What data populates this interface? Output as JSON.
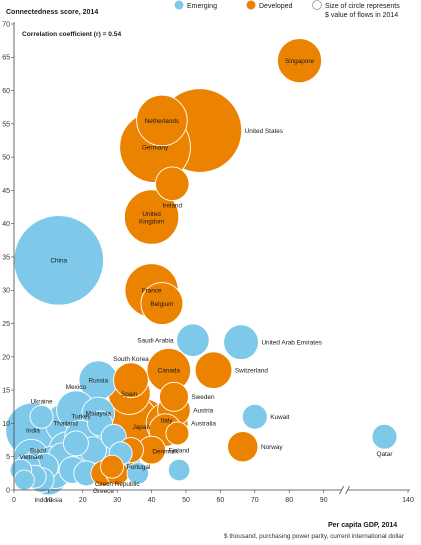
{
  "chart_data": {
    "type": "scatter",
    "ylabel": "Connectedness score, 2014",
    "xlabel": "Per capita GDP, 2014",
    "xlabel_sub": "$ thousand, purchasing power parity, current international dollar",
    "annotation": "Correlation coefficient (r) = 0.54",
    "legend": {
      "items": [
        {
          "name": "Emerging",
          "color": "#7ec8ea"
        },
        {
          "name": "Developed",
          "color": "#ec8300"
        }
      ],
      "size_note_line1": "Size of circle represents",
      "size_note_line2": "$ value of flows in 2014"
    },
    "xlim": [
      0,
      140
    ],
    "ylim": [
      0,
      70
    ],
    "x_ticks": [
      "0",
      "10",
      "20",
      "30",
      "40",
      "50",
      "60",
      "70",
      "80",
      "90",
      "140"
    ],
    "y_ticks": [
      "0",
      "5",
      "10",
      "15",
      "20",
      "25",
      "30",
      "35",
      "40",
      "45",
      "50",
      "55",
      "60",
      "65",
      "70"
    ],
    "axis_break_between": [
      90,
      140
    ],
    "grid": false,
    "legend_placement": "top",
    "colors": {
      "emerging": "#7ec8ea",
      "developed": "#ec8300"
    },
    "labeled_points": [
      {
        "name": "Singapore",
        "group": "developed",
        "x": 83,
        "y": 64.5,
        "size": 0.62
      },
      {
        "name": "United States",
        "group": "developed",
        "x": 54,
        "y": 54,
        "size": 2.6
      },
      {
        "name": "Netherlands",
        "group": "developed",
        "x": 43,
        "y": 55.5,
        "size": 0.85
      },
      {
        "name": "Germany",
        "group": "developed",
        "x": 41,
        "y": 51.5,
        "size": 1.8
      },
      {
        "name": "Ireland",
        "group": "developed",
        "x": 46,
        "y": 46,
        "size": 0.32
      },
      {
        "name": "United Kingdom",
        "group": "developed",
        "x": 40,
        "y": 41,
        "size": 1.0
      },
      {
        "name": "China",
        "group": "emerging",
        "x": 13,
        "y": 34.5,
        "size": 3.0
      },
      {
        "name": "France",
        "group": "developed",
        "x": 40,
        "y": 30,
        "size": 0.95
      },
      {
        "name": "Belgium",
        "group": "developed",
        "x": 43,
        "y": 28,
        "size": 0.55
      },
      {
        "name": "Saudi Arabia",
        "group": "emerging",
        "x": 52,
        "y": 22.5,
        "size": 0.3
      },
      {
        "name": "United Arab Emirates",
        "group": "emerging",
        "x": 66,
        "y": 22.2,
        "size": 0.35
      },
      {
        "name": "Russia",
        "group": "emerging",
        "x": 24.5,
        "y": 16.5,
        "size": 0.45
      },
      {
        "name": "Canada",
        "group": "developed",
        "x": 45,
        "y": 18,
        "size": 0.6
      },
      {
        "name": "Switzerland",
        "group": "developed",
        "x": 58,
        "y": 18,
        "size": 0.4
      },
      {
        "name": "South Korea",
        "group": "developed",
        "x": 34,
        "y": 16.5,
        "size": 0.35
      },
      {
        "name": "Spain",
        "group": "developed",
        "x": 33.5,
        "y": 14.5,
        "size": 0.55
      },
      {
        "name": "Sweden",
        "group": "developed",
        "x": 46.5,
        "y": 14,
        "size": 0.22
      },
      {
        "name": "Austria",
        "group": "developed",
        "x": 46.5,
        "y": 12,
        "size": 0.3
      },
      {
        "name": "Mexico",
        "group": "emerging",
        "x": 18,
        "y": 12,
        "size": 0.45
      },
      {
        "name": "Malaysia",
        "group": "emerging",
        "x": 24.5,
        "y": 11.5,
        "size": 0.3
      },
      {
        "name": "Ukraine",
        "group": "emerging",
        "x": 8,
        "y": 11,
        "size": 0.12
      },
      {
        "name": "Thailand",
        "group": "emerging",
        "x": 15,
        "y": 10,
        "size": 0.5
      },
      {
        "name": "Italy",
        "group": "developed",
        "x": 35,
        "y": 10.5,
        "size": 0.7
      },
      {
        "name": "Japan",
        "group": "developed",
        "x": 37,
        "y": 9.5,
        "size": 1.1
      },
      {
        "name": "Australia",
        "group": "developed",
        "x": 44.5,
        "y": 10,
        "size": 0.55
      },
      {
        "name": "Kuwait",
        "group": "emerging",
        "x": 70,
        "y": 11,
        "size": 0.15
      },
      {
        "name": "India",
        "group": "emerging",
        "x": 5.5,
        "y": 9,
        "size": 1.0
      },
      {
        "name": "Turkey",
        "group": "emerging",
        "x": 19.5,
        "y": 8,
        "size": 0.3
      },
      {
        "name": "Denmark",
        "group": "developed",
        "x": 44,
        "y": 9,
        "size": 0.3
      },
      {
        "name": "Qatar",
        "group": "emerging",
        "x": 93,
        "y": 8,
        "size": 0.15
      },
      {
        "name": "Norway",
        "group": "developed",
        "x": 66.5,
        "y": 6.5,
        "size": 0.25
      },
      {
        "name": "Finland",
        "group": "developed",
        "x": 40,
        "y": 6,
        "size": 0.2
      },
      {
        "name": "Vietnam",
        "group": "emerging",
        "x": 5,
        "y": 5,
        "size": 0.35
      },
      {
        "name": "Brazil",
        "group": "emerging",
        "x": 15.5,
        "y": 6,
        "size": 0.4
      },
      {
        "name": "Portugal",
        "group": "developed",
        "x": 28.5,
        "y": 3.5,
        "size": 0.12
      },
      {
        "name": "Czech Republic",
        "group": "emerging",
        "x": 30,
        "y": 3.5,
        "size": 0.15
      },
      {
        "name": "Greece",
        "group": "developed",
        "x": 26,
        "y": 2.5,
        "size": 0.15
      },
      {
        "name": "Indonesia",
        "group": "emerging",
        "x": 10,
        "y": 2,
        "size": 0.4
      }
    ],
    "unlabeled_points": [
      {
        "group": "emerging",
        "x": 2,
        "y": 3,
        "size": 0.1
      },
      {
        "group": "emerging",
        "x": 3,
        "y": 1.5,
        "size": 0.08
      },
      {
        "group": "emerging",
        "x": 4,
        "y": 3.5,
        "size": 0.15
      },
      {
        "group": "emerging",
        "x": 6,
        "y": 2,
        "size": 0.12
      },
      {
        "group": "emerging",
        "x": 7,
        "y": 4,
        "size": 0.2
      },
      {
        "group": "emerging",
        "x": 8,
        "y": 1.5,
        "size": 0.15
      },
      {
        "group": "emerging",
        "x": 9,
        "y": 3.5,
        "size": 0.18
      },
      {
        "group": "emerging",
        "x": 11,
        "y": 4.5,
        "size": 0.2
      },
      {
        "group": "emerging",
        "x": 12,
        "y": 2.5,
        "size": 0.25
      },
      {
        "group": "emerging",
        "x": 13,
        "y": 3.5,
        "size": 0.3
      },
      {
        "group": "emerging",
        "x": 14,
        "y": 5,
        "size": 0.2
      },
      {
        "group": "emerging",
        "x": 17,
        "y": 3,
        "size": 0.18
      },
      {
        "group": "emerging",
        "x": 18,
        "y": 7,
        "size": 0.15
      },
      {
        "group": "emerging",
        "x": 20,
        "y": 5,
        "size": 0.35
      },
      {
        "group": "emerging",
        "x": 21,
        "y": 2.5,
        "size": 0.15
      },
      {
        "group": "emerging",
        "x": 22,
        "y": 4,
        "size": 0.2
      },
      {
        "group": "emerging",
        "x": 23,
        "y": 6,
        "size": 0.18
      },
      {
        "group": "emerging",
        "x": 25,
        "y": 10,
        "size": 0.15
      },
      {
        "group": "emerging",
        "x": 26,
        "y": 7.5,
        "size": 0.3
      },
      {
        "group": "emerging",
        "x": 27,
        "y": 5,
        "size": 0.2
      },
      {
        "group": "emerging",
        "x": 29,
        "y": 8,
        "size": 0.15
      },
      {
        "group": "emerging",
        "x": 31,
        "y": 5.5,
        "size": 0.12
      },
      {
        "group": "emerging",
        "x": 33,
        "y": 4.5,
        "size": 0.15
      },
      {
        "group": "emerging",
        "x": 36,
        "y": 2.5,
        "size": 0.1
      },
      {
        "group": "emerging",
        "x": 48,
        "y": 3,
        "size": 0.1
      },
      {
        "group": "developed",
        "x": 30,
        "y": 2.5,
        "size": 0.12
      },
      {
        "group": "developed",
        "x": 31,
        "y": 4,
        "size": 0.15
      },
      {
        "group": "developed",
        "x": 34,
        "y": 6,
        "size": 0.15
      },
      {
        "group": "developed",
        "x": 47.5,
        "y": 8.5,
        "size": 0.12
      }
    ]
  }
}
